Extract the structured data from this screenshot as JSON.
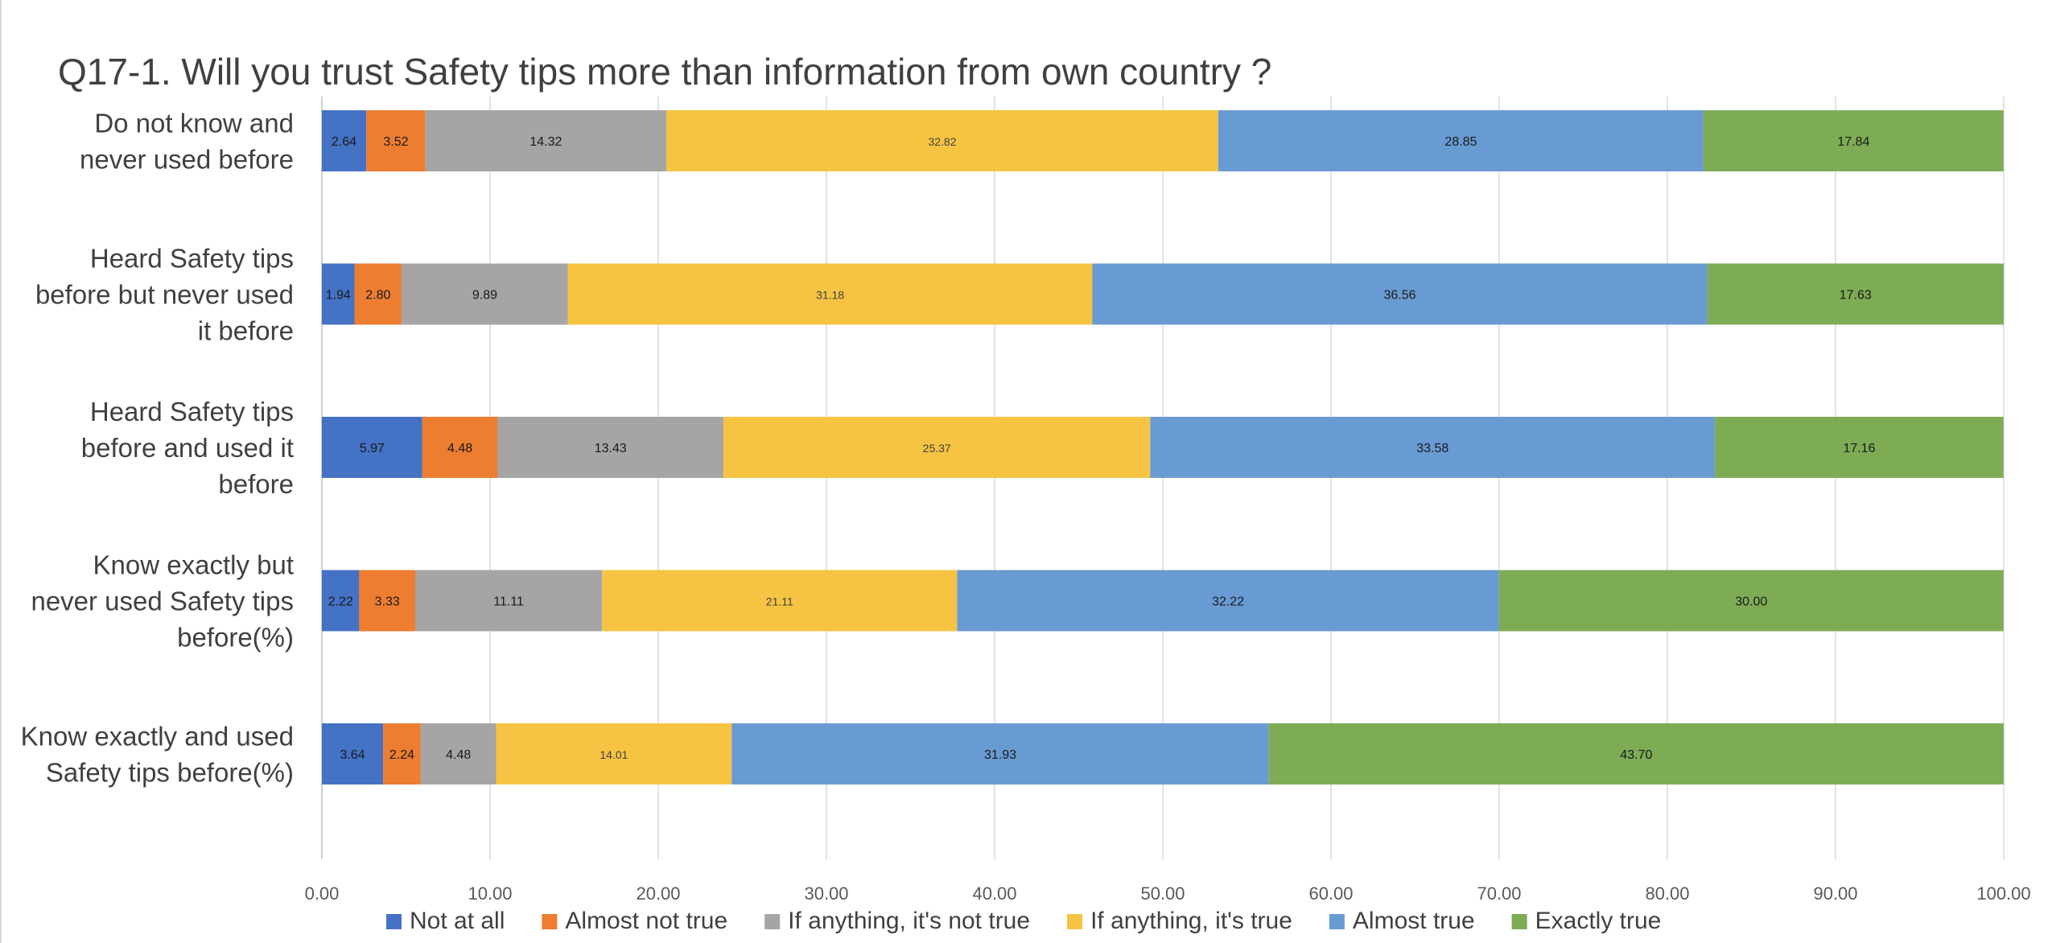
{
  "chart_data": {
    "type": "bar",
    "orientation": "horizontal",
    "stacked": true,
    "title": "Q17-1. Will you trust Safety tips more than information from own country ?",
    "xlabel": "",
    "ylabel": "",
    "xlim": [
      0,
      100
    ],
    "x_ticks": [
      "0.00",
      "10.00",
      "20.00",
      "30.00",
      "40.00",
      "50.00",
      "60.00",
      "70.00",
      "80.00",
      "90.00",
      "100.00"
    ],
    "grid": true,
    "legend_position": "bottom",
    "categories": [
      [
        "Do not know and",
        "never used before"
      ],
      [
        "Heard Safety tips",
        "before but never used",
        "it before"
      ],
      [
        "Heard Safety tips",
        "before and used it",
        "before"
      ],
      [
        "Know exactly but",
        "never used Safety tips",
        "before(%)"
      ],
      [
        "Know exactly and used",
        "Safety tips before(%)"
      ]
    ],
    "series": [
      {
        "name": "Not at all",
        "color": "#4472c4",
        "values": [
          2.64,
          1.94,
          5.97,
          2.22,
          3.64
        ],
        "labels": [
          "2.64",
          "1.94",
          "5.97",
          "2.22",
          "3.64"
        ]
      },
      {
        "name": "Almost not true",
        "color": "#ed7d31",
        "values": [
          3.52,
          2.8,
          4.48,
          3.33,
          2.24
        ],
        "labels": [
          "3.52",
          "2.80",
          "4.48",
          "3.33",
          "2.24"
        ]
      },
      {
        "name": "If anything, it's not true",
        "color": "#a5a5a5",
        "values": [
          14.32,
          9.89,
          13.43,
          11.11,
          4.48
        ],
        "labels": [
          "14.32",
          "9.89",
          "13.43",
          "11.11",
          "4.48"
        ]
      },
      {
        "name": "If anything, it's true",
        "color": "#f6c342",
        "values": [
          32.82,
          31.18,
          25.37,
          21.11,
          14.01
        ],
        "labels": [
          "32.82",
          "31.18",
          "25.37",
          "21.11",
          "14.01"
        ]
      },
      {
        "name": "Almost true",
        "color": "#699bd3",
        "values": [
          28.85,
          36.56,
          33.58,
          32.22,
          31.93
        ],
        "labels": [
          "28.85",
          "36.56",
          "33.58",
          "32.22",
          "31.93"
        ]
      },
      {
        "name": "Exactly true",
        "color": "#7eac55",
        "values": [
          17.84,
          17.63,
          17.16,
          30.0,
          43.7
        ],
        "labels": [
          "17.84",
          "17.63",
          "17.16",
          "30.00",
          "43.70"
        ]
      }
    ]
  }
}
